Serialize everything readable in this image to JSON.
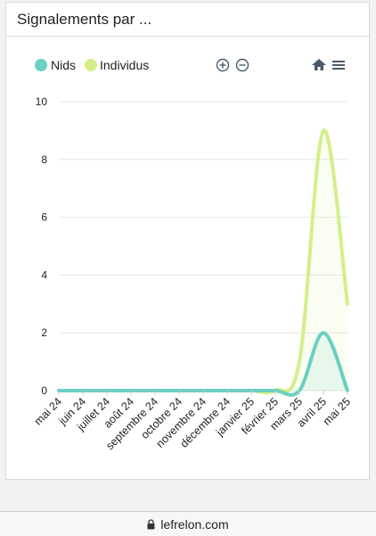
{
  "card": {
    "title": "Signalements par ..."
  },
  "toolbar": {
    "zoom_in_icon": "zoom-in-icon",
    "zoom_out_icon": "zoom-out-icon",
    "home_icon": "home-icon",
    "menu_icon": "menu-icon"
  },
  "browser": {
    "domain": "lefrelon.com"
  },
  "colors": {
    "nids": "#6bcfc2",
    "individus": "#d4ef8a",
    "grid": "#e6e6e6",
    "axis_text": "#222222"
  },
  "chart_data": {
    "type": "area",
    "categories": [
      "mai 24",
      "juin 24",
      "juillet 24",
      "août 24",
      "septembre 24",
      "octobre 24",
      "novembre 24",
      "décembre 24",
      "janvier 25",
      "février 25",
      "mars 25",
      "avril 25",
      "mai 25"
    ],
    "series": [
      {
        "name": "Nids",
        "values": [
          0,
          0,
          0,
          0,
          0,
          0,
          0,
          0,
          0,
          0,
          0,
          2,
          0
        ]
      },
      {
        "name": "Individus",
        "values": [
          0,
          0,
          0,
          0,
          0,
          0,
          0,
          0,
          0,
          0,
          1,
          9,
          3
        ]
      }
    ],
    "yticks": [
      0,
      2,
      4,
      6,
      8,
      10
    ],
    "ylim": [
      0,
      10
    ],
    "legend": "top-left",
    "grid": true
  }
}
